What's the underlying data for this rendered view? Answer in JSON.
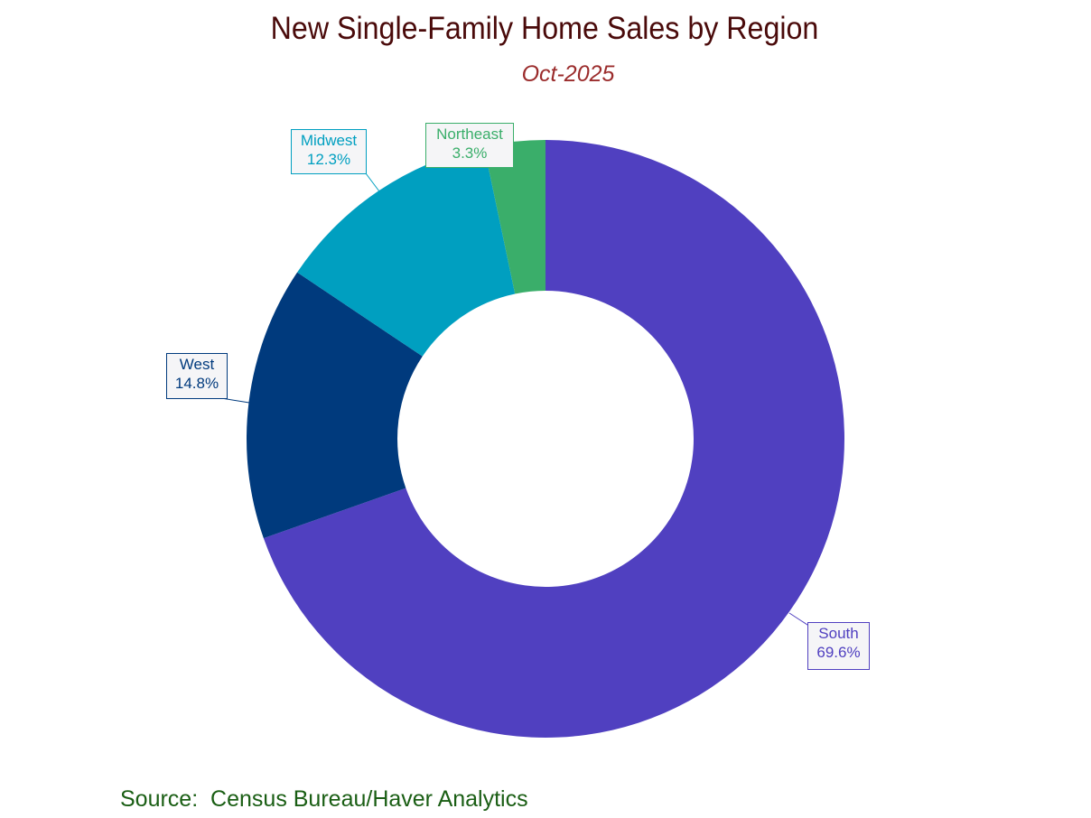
{
  "header": {
    "title": "New Single-Family Home Sales by Region",
    "subtitle": "Oct-2025"
  },
  "footer": {
    "source": "Source:  Census Bureau/Haver Analytics"
  },
  "labels": {
    "south": {
      "name": "South",
      "value": "69.6%",
      "color": "#5040c0"
    },
    "west": {
      "name": "West",
      "value": "14.8%",
      "color": "#003a7d"
    },
    "midwest": {
      "name": "Midwest",
      "value": "12.3%",
      "color": "#009fc0"
    },
    "northeast": {
      "name": "Northeast",
      "value": "3.3%",
      "color": "#3aae6a"
    }
  },
  "chart_data": {
    "type": "pie",
    "subtype": "donut",
    "title": "New Single-Family Home Sales by Region",
    "subtitle": "Oct-2025",
    "categories": [
      "South",
      "West",
      "Midwest",
      "Northeast"
    ],
    "values": [
      69.6,
      14.8,
      12.3,
      3.3
    ],
    "unit": "%",
    "colors": [
      "#5040c0",
      "#003a7d",
      "#009fc0",
      "#3aae6a"
    ],
    "start_angle": "12 o'clock",
    "direction": "clockwise",
    "source": "Source:  Census Bureau/Haver Analytics",
    "legend": "none (callout labels)"
  }
}
